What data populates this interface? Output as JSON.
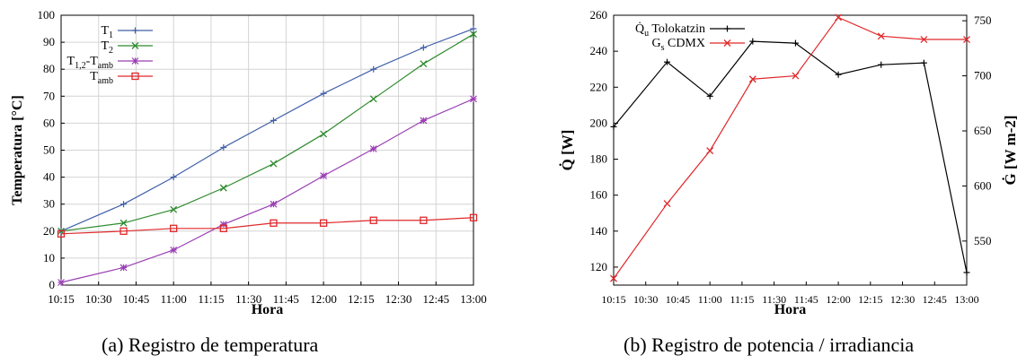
{
  "figure": {
    "caption_a": "(a) Registro de temperatura",
    "caption_b": "(b) Registro de potencia / irradiancia"
  },
  "chart_data": [
    {
      "type": "line",
      "panel": "a",
      "xlabel": "Hora",
      "ylabel": "Temperatura [°C]",
      "x_ticks": [
        "10:15",
        "10:30",
        "10:45",
        "11:00",
        "11:15",
        "11:30",
        "11:45",
        "12:00",
        "12:15",
        "12:30",
        "12:45",
        "13:00"
      ],
      "xlim": [
        "10:15",
        "13:00"
      ],
      "ylim": [
        0,
        100
      ],
      "y_ticks": [
        0,
        10,
        20,
        30,
        40,
        50,
        60,
        70,
        80,
        90,
        100
      ],
      "grid": true,
      "legend_position": "top-left",
      "series": [
        {
          "name": "T1",
          "label_main": "T",
          "label_sub": "1",
          "color": "#3f5fa8",
          "marker": "plus",
          "x": [
            "10:15",
            "10:40",
            "11:00",
            "11:20",
            "11:40",
            "12:00",
            "12:20",
            "12:40",
            "13:00"
          ],
          "y": [
            20,
            30,
            40,
            51,
            61,
            71,
            80,
            88,
            95
          ]
        },
        {
          "name": "T2",
          "label_main": "T",
          "label_sub": "2",
          "color": "#2e8b2e",
          "marker": "x",
          "x": [
            "10:15",
            "10:40",
            "11:00",
            "11:20",
            "11:40",
            "12:00",
            "12:20",
            "12:40",
            "13:00"
          ],
          "y": [
            20,
            23,
            28,
            36,
            45,
            56,
            69,
            82,
            93
          ]
        },
        {
          "name": "T1,2-Tamb",
          "label_main": "T",
          "label_sub": "1,2",
          "label_suffix": "-T",
          "label_sub2": "amb",
          "color": "#9b3fb5",
          "marker": "star",
          "x": [
            "10:15",
            "10:40",
            "11:00",
            "11:20",
            "11:40",
            "12:00",
            "12:20",
            "12:40",
            "13:00"
          ],
          "y": [
            1,
            6.5,
            13,
            22.5,
            30,
            40.5,
            50.5,
            61,
            69
          ]
        },
        {
          "name": "Tamb",
          "label_main": "T",
          "label_sub": "amb",
          "color": "#e0282a",
          "marker": "square",
          "x": [
            "10:15",
            "10:40",
            "11:00",
            "11:20",
            "11:40",
            "12:00",
            "12:20",
            "12:40",
            "13:00"
          ],
          "y": [
            19,
            20,
            21,
            21,
            23,
            23,
            24,
            24,
            25
          ]
        }
      ]
    },
    {
      "type": "line",
      "panel": "b",
      "xlabel": "Hora",
      "ylabel_left": "Q̇ [W]",
      "ylabel_right": "Ġ [W m-2]",
      "x_ticks": [
        "10:15",
        "10:30",
        "10:45",
        "11:00",
        "11:15",
        "11:30",
        "11:45",
        "12:00",
        "12:15",
        "12:30",
        "12:45",
        "13:00"
      ],
      "xlim": [
        "10:15",
        "13:00"
      ],
      "ylim_left": [
        110,
        260
      ],
      "y_ticks_left": [
        120,
        140,
        160,
        180,
        200,
        220,
        240,
        260
      ],
      "ylim_right": [
        510,
        755
      ],
      "y_ticks_right": [
        550,
        600,
        650,
        700,
        750
      ],
      "grid": false,
      "legend_position": "top-right",
      "series": [
        {
          "name": "Q̇u Tolokatzin",
          "label_main": "Q̇",
          "label_sub": "u",
          "label_suffix": " Tolokatzin",
          "axis": "left",
          "color": "#000000",
          "marker": "plus",
          "x": [
            "10:15",
            "10:40",
            "11:00",
            "11:20",
            "11:40",
            "12:00",
            "12:20",
            "12:40",
            "13:00"
          ],
          "y": [
            198,
            234,
            215,
            245.5,
            244.5,
            227,
            232.5,
            233.5,
            117
          ]
        },
        {
          "name": "Gs CDMX",
          "label_main": "G",
          "label_sub": "s",
          "label_suffix": " CDMX",
          "axis": "right",
          "color": "#e0282a",
          "marker": "x",
          "x": [
            "10:15",
            "10:40",
            "11:00",
            "11:20",
            "11:40",
            "12:00",
            "12:20",
            "12:40",
            "13:00"
          ],
          "y": [
            516,
            584,
            632,
            697,
            700,
            753,
            736,
            733,
            733
          ]
        }
      ]
    }
  ]
}
